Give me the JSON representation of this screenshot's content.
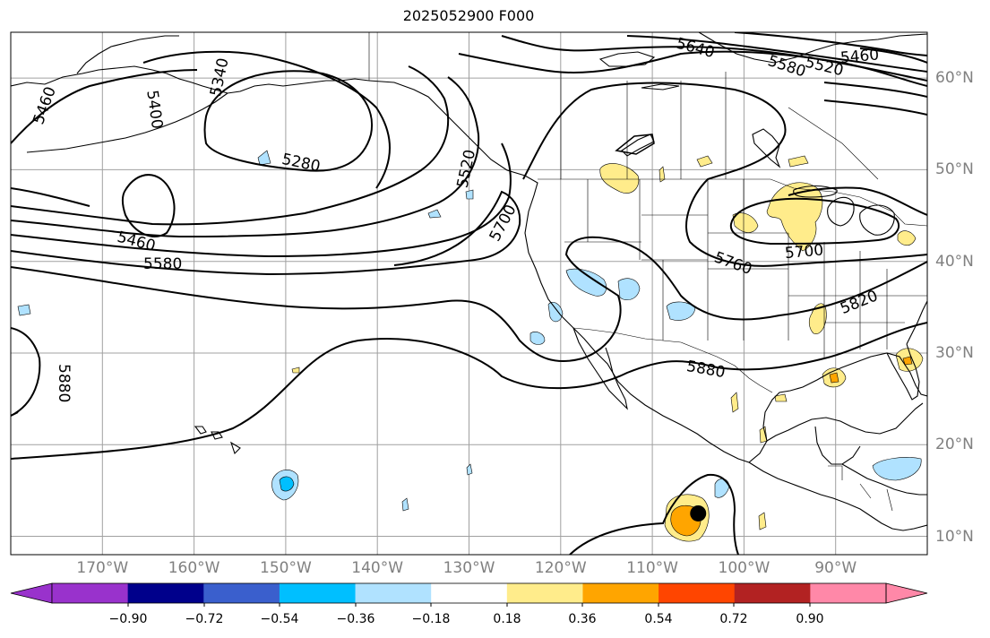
{
  "title": "2025052900 F000",
  "colors": {
    "land_outline": "#000000",
    "grid": "#a0a0a0",
    "contour": "#000000",
    "background": "#ffffff"
  },
  "map": {
    "projection": "PlateCarree",
    "lon_range": [
      -180,
      -80
    ],
    "lat_range": [
      8,
      65
    ],
    "lon_labels": [
      {
        "lon": -170,
        "text": "170°W"
      },
      {
        "lon": -160,
        "text": "160°W"
      },
      {
        "lon": -150,
        "text": "150°W"
      },
      {
        "lon": -140,
        "text": "140°W"
      },
      {
        "lon": -130,
        "text": "130°W"
      },
      {
        "lon": -120,
        "text": "120°W"
      },
      {
        "lon": -110,
        "text": "110°W"
      },
      {
        "lon": -100,
        "text": "100°W"
      },
      {
        "lon": -90,
        "text": "90°W"
      }
    ],
    "lat_labels": [
      {
        "lat": 60,
        "text": "60°N"
      },
      {
        "lat": 50,
        "text": "50°N"
      },
      {
        "lat": 40,
        "text": "40°N"
      },
      {
        "lat": 30,
        "text": "30°N"
      },
      {
        "lat": 20,
        "text": "20°N"
      },
      {
        "lat": 10,
        "text": "10°N"
      }
    ],
    "contour_labels": [
      "5460",
      "5400",
      "5340",
      "5280",
      "5520",
      "5700",
      "5460",
      "5580",
      "5640",
      "5580",
      "5520",
      "5460",
      "5700",
      "5760",
      "5820",
      "5880",
      "5880"
    ],
    "marker": {
      "lon": -105,
      "lat": 12.5,
      "shape": "filled-circle"
    }
  },
  "colorbar": {
    "ticks": [
      "−0.90",
      "−0.72",
      "−0.54",
      "−0.36",
      "−0.18",
      "0.18",
      "0.36",
      "0.54",
      "0.72",
      "0.90"
    ],
    "colors": [
      "#9932cc",
      "#00008b",
      "#3a5fcd",
      "#00bfff",
      "#b0e2ff",
      "#ffffff",
      "#ffec8b",
      "#ffa500",
      "#ff4500",
      "#b22222",
      "#ff88a8"
    ],
    "extend": "both"
  }
}
